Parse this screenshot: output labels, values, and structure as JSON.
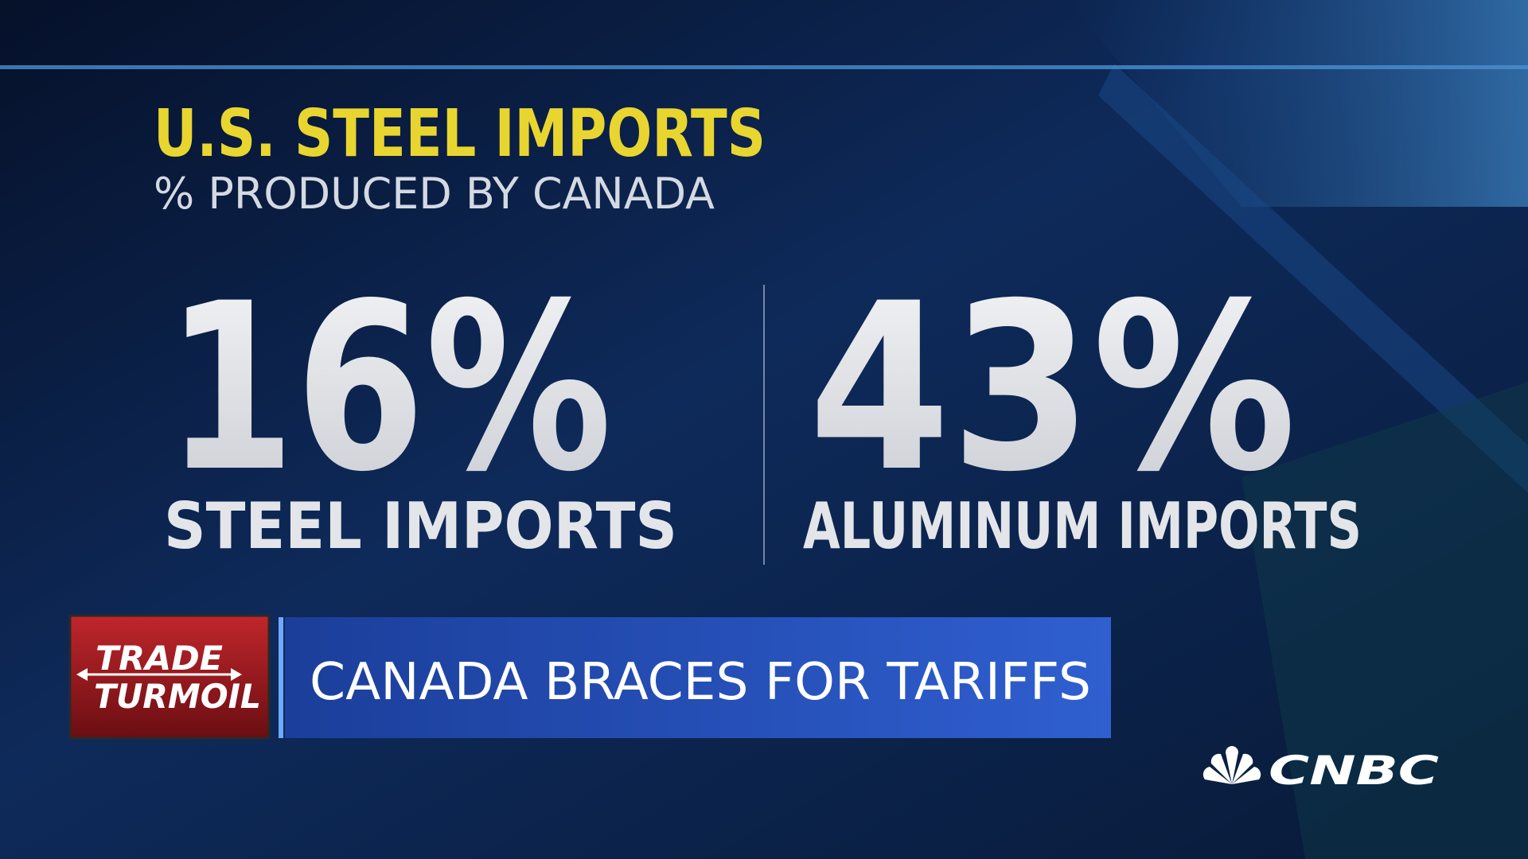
{
  "header": {
    "title": "U.S. STEEL IMPORTS",
    "subtitle": "% PRODUCED BY CANADA"
  },
  "stats": [
    {
      "figure": "16%",
      "label": "STEEL IMPORTS"
    },
    {
      "figure": "43%",
      "label": "ALUMINUM IMPORTS"
    }
  ],
  "lower_third": {
    "tag_top": "TRADE",
    "tag_bottom": "TURMOIL",
    "headline": "CANADA BRACES FOR TARIFFS"
  },
  "network": "CNBC"
}
